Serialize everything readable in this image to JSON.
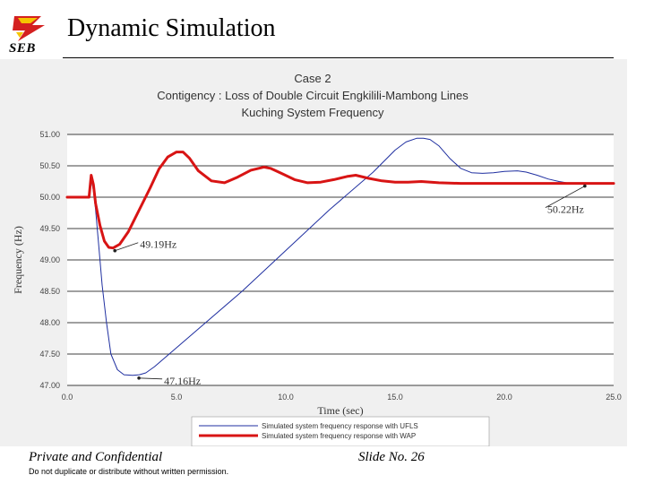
{
  "header": {
    "logo_text": "SEB",
    "title": "Dynamic Simulation"
  },
  "footer": {
    "left": "Private and Confidential",
    "note": "Do not duplicate or distribute without written permission.",
    "right": "Slide No. 26"
  },
  "colors": {
    "ufls": "#1f2fa0",
    "wap": "#d81414",
    "logo_red": "#d42020",
    "logo_yellow": "#f5c400"
  },
  "chart_data": {
    "type": "line",
    "title": "Case 2",
    "subtitle": "Contigency : Loss of Double Circuit Engkilili-Mambong Lines",
    "subtitle2": "Kuching  System Frequency",
    "xlabel": "Time (sec)",
    "ylabel": "Frequency (Hz)",
    "xlim": [
      0,
      25
    ],
    "ylim": [
      47,
      51
    ],
    "xticks": [
      "0.0",
      "5.0",
      "10.0",
      "15.0",
      "20.0",
      "25.0"
    ],
    "yticks": [
      "47.00",
      "47.50",
      "48.00",
      "48.50",
      "49.00",
      "49.50",
      "50.00",
      "50.50",
      "51.00"
    ],
    "grid": "horizontal",
    "legend_position": "bottom",
    "series": [
      {
        "name": "Simulated system frequency response with UFLS",
        "color": "#1f2fa0",
        "style": "thin",
        "x": [
          0,
          1.0,
          1.1,
          1.2,
          1.3,
          1.45,
          1.6,
          1.8,
          2.0,
          2.3,
          2.6,
          3.0,
          3.3,
          3.6,
          4.0,
          5.0,
          6.0,
          8.0,
          10.0,
          12.0,
          14.0,
          15.0,
          15.5,
          16.0,
          16.3,
          16.6,
          17.0,
          17.5,
          18.0,
          18.5,
          19.0,
          19.5,
          20.0,
          20.6,
          21.0,
          21.5,
          22.0,
          22.5,
          23.0,
          25.0
        ],
        "y": [
          50.0,
          50.0,
          50.3,
          50.1,
          49.8,
          49.2,
          48.6,
          48.0,
          47.5,
          47.25,
          47.17,
          47.16,
          47.17,
          47.2,
          47.3,
          47.6,
          47.9,
          48.5,
          49.15,
          49.8,
          50.4,
          50.75,
          50.88,
          50.94,
          50.94,
          50.92,
          50.82,
          50.62,
          50.46,
          50.39,
          50.38,
          50.39,
          50.41,
          50.42,
          50.4,
          50.35,
          50.29,
          50.25,
          50.22,
          50.22
        ]
      },
      {
        "name": "Simulated system frequency response with WAP",
        "color": "#d81414",
        "style": "thick",
        "x": [
          0,
          1.0,
          1.1,
          1.2,
          1.3,
          1.5,
          1.7,
          1.9,
          2.1,
          2.4,
          2.8,
          3.3,
          3.8,
          4.2,
          4.6,
          5.0,
          5.3,
          5.6,
          6.0,
          6.6,
          7.2,
          7.8,
          8.4,
          9.0,
          9.3,
          9.8,
          10.4,
          11.0,
          11.6,
          12.2,
          12.8,
          13.2,
          13.8,
          14.4,
          15.0,
          15.6,
          16.2,
          17.0,
          18.0,
          19.0,
          20.0,
          21.0,
          22.0,
          23.0,
          25.0
        ],
        "y": [
          50.0,
          50.0,
          50.35,
          50.2,
          49.9,
          49.55,
          49.3,
          49.2,
          49.19,
          49.25,
          49.45,
          49.8,
          50.15,
          50.45,
          50.64,
          50.72,
          50.72,
          50.62,
          50.42,
          50.26,
          50.23,
          50.32,
          50.43,
          50.48,
          50.46,
          50.38,
          50.28,
          50.23,
          50.24,
          50.28,
          50.33,
          50.35,
          50.3,
          50.26,
          50.24,
          50.24,
          50.25,
          50.23,
          50.22,
          50.22,
          50.22,
          50.22,
          50.22,
          50.22,
          50.22
        ]
      }
    ],
    "annotations": [
      {
        "text": "49.19Hz",
        "x": 2.1,
        "y": 49.19,
        "anchor": "right"
      },
      {
        "text": "47.16Hz",
        "x": 3.2,
        "y": 47.16,
        "anchor": "right"
      },
      {
        "text": "50.22Hz",
        "x": 23.6,
        "y": 50.22,
        "anchor": "below-left"
      }
    ]
  }
}
